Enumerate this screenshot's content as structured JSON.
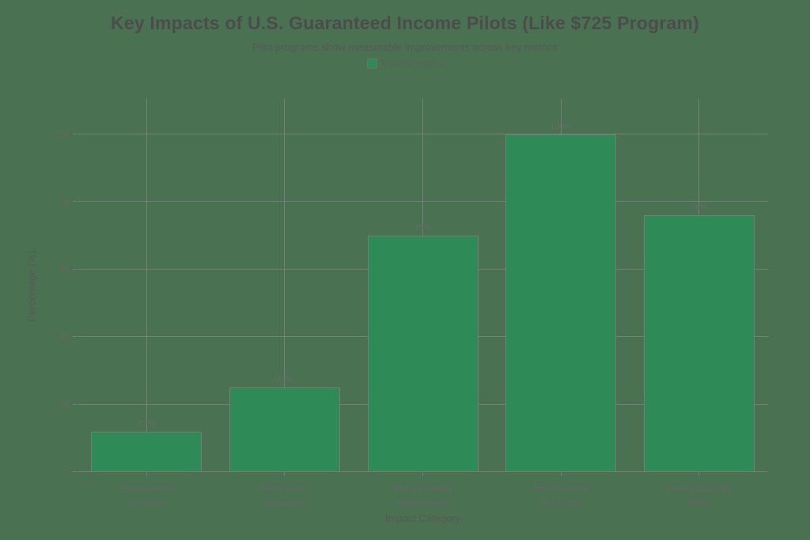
{
  "chart_data": {
    "type": "bar",
    "title": "Key Impacts of U.S. Guaranteed Income Pilots (Like $725 Program)",
    "subtitle": "Pilot programs show measurable improvements across key metrics",
    "legend": [
      {
        "label": "Positive Impact",
        "color": "#2e8b57"
      }
    ],
    "legend_position": "top-center",
    "categories": [
      "Employment\nIncrease",
      "Food Insec.\nReduction",
      "Mental Health\nImprovement",
      "Job Retention\n(No Drop)",
      "Family Security\nBoost"
    ],
    "values": [
      12,
      25,
      70,
      100,
      76
    ],
    "value_labels": [
      "12%",
      "25%",
      "70%",
      "100%",
      "76%"
    ],
    "xlabel": "Impact Category",
    "ylabel": "Percentage (%)",
    "ylim": [
      0,
      100
    ],
    "yticks": [
      0,
      20,
      40,
      60,
      80,
      100
    ],
    "grid": true,
    "colors": {
      "bar_fill": "#2e8b57",
      "bar_edge": "#7a7a7a",
      "background": "#4a7152",
      "grid": "#838383",
      "axis_line": "#7a7a7a",
      "title_text": "#4c4c4c",
      "text": "#595959",
      "tick_text": "#666666"
    }
  }
}
